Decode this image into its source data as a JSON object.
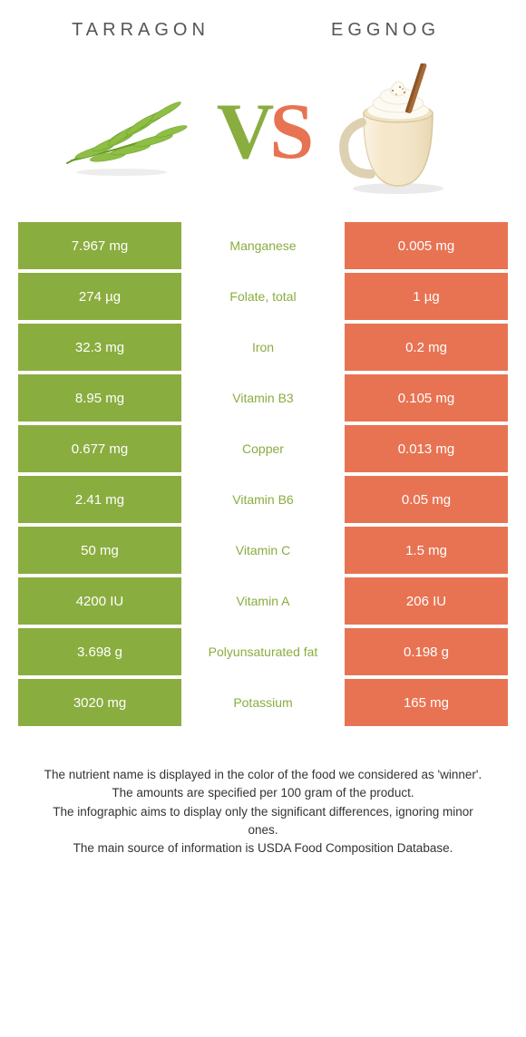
{
  "header": {
    "left": "TARRAGON",
    "right": "EGGNOG"
  },
  "vs": {
    "v": "V",
    "s": "S"
  },
  "colors": {
    "left": "#8aad3f",
    "right": "#e87352",
    "text": "#555555"
  },
  "rows": [
    {
      "left": "7.967 mg",
      "label": "Manganese",
      "right": "0.005 mg",
      "winner": "left"
    },
    {
      "left": "274 µg",
      "label": "Folate, total",
      "right": "1 µg",
      "winner": "left"
    },
    {
      "left": "32.3 mg",
      "label": "Iron",
      "right": "0.2 mg",
      "winner": "left"
    },
    {
      "left": "8.95 mg",
      "label": "Vitamin B3",
      "right": "0.105 mg",
      "winner": "left"
    },
    {
      "left": "0.677 mg",
      "label": "Copper",
      "right": "0.013 mg",
      "winner": "left"
    },
    {
      "left": "2.41 mg",
      "label": "Vitamin B6",
      "right": "0.05 mg",
      "winner": "left"
    },
    {
      "left": "50 mg",
      "label": "Vitamin C",
      "right": "1.5 mg",
      "winner": "left"
    },
    {
      "left": "4200 IU",
      "label": "Vitamin A",
      "right": "206 IU",
      "winner": "left"
    },
    {
      "left": "3.698 g",
      "label": "Polyunsaturated fat",
      "right": "0.198 g",
      "winner": "left"
    },
    {
      "left": "3020 mg",
      "label": "Potassium",
      "right": "165 mg",
      "winner": "left"
    }
  ],
  "footer": {
    "line1": "The nutrient name is displayed in the color of the food we considered as 'winner'.",
    "line2": "The amounts are specified per 100 gram of the product.",
    "line3": "The infographic aims to display only the significant differences, ignoring minor ones.",
    "line4": "The main source of information is USDA Food Composition Database."
  }
}
